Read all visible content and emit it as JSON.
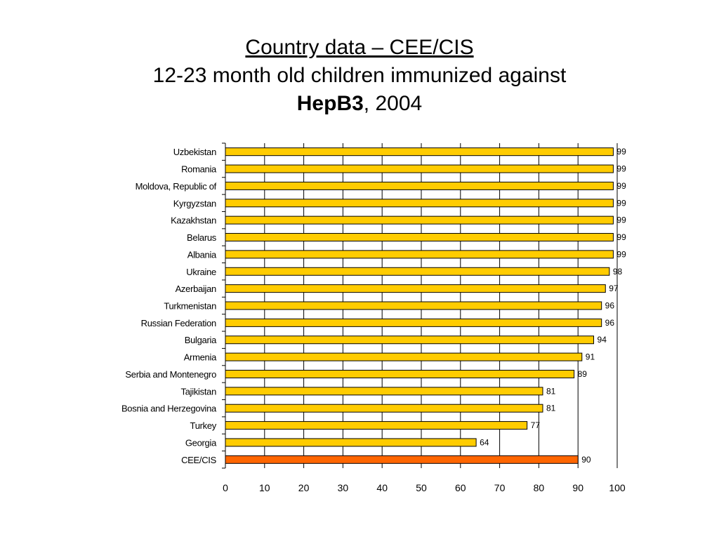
{
  "title": {
    "line1": "Country data – CEE/CIS",
    "line2": "12-23 month old children immunized against",
    "line3_bold": "HepB3",
    "line3_rest": ", 2004"
  },
  "colors": {
    "bar": "#FFCC00",
    "highlight_bar": "#FF6600",
    "bar_stroke": "#000000",
    "grid": "#000000"
  },
  "chart_data": {
    "type": "bar",
    "orientation": "horizontal",
    "categories": [
      "Uzbekistan",
      "Romania",
      "Moldova, Republic of",
      "Kyrgyzstan",
      "Kazakhstan",
      "Belarus",
      "Albania",
      "Ukraine",
      "Azerbaijan",
      "Turkmenistan",
      "Russian Federation",
      "Bulgaria",
      "Armenia",
      "Serbia and Montenegro",
      "Tajikistan",
      "Bosnia and Herzegovina",
      "Turkey",
      "Georgia",
      "CEE/CIS"
    ],
    "values": [
      99,
      99,
      99,
      99,
      99,
      99,
      99,
      98,
      97,
      96,
      96,
      94,
      91,
      89,
      81,
      81,
      77,
      64,
      90
    ],
    "highlight_category": "CEE/CIS",
    "xlim": [
      0,
      100
    ],
    "xticks": [
      0,
      10,
      20,
      30,
      40,
      50,
      60,
      70,
      80,
      90,
      100
    ],
    "grid": "vertical",
    "data_labels": true,
    "legend": "none"
  }
}
